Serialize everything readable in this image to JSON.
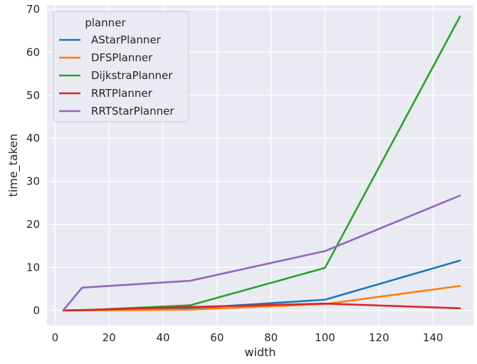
{
  "chart_data": {
    "type": "line",
    "xlabel": "width",
    "ylabel": "time_taken",
    "xlim": [
      -3,
      155
    ],
    "ylim": [
      -3.5,
      71
    ],
    "xticks": [
      0,
      20,
      40,
      60,
      80,
      100,
      120,
      140
    ],
    "yticks": [
      0,
      10,
      20,
      30,
      40,
      50,
      60,
      70
    ],
    "grid": true,
    "background": "#eaeaf2",
    "legend": {
      "title": "planner",
      "position": "top-left"
    },
    "series": [
      {
        "name": "AStarPlanner",
        "color": "#1f77b4",
        "x": [
          3,
          10,
          50,
          100,
          150
        ],
        "y": [
          0.0,
          0.05,
          0.5,
          2.5,
          11.6
        ]
      },
      {
        "name": "DFSPlanner",
        "color": "#ff7f0e",
        "x": [
          3,
          10,
          50,
          100,
          150
        ],
        "y": [
          0.0,
          0.02,
          0.2,
          1.5,
          5.7
        ]
      },
      {
        "name": "DijkstraPlanner",
        "color": "#2ca02c",
        "x": [
          3,
          10,
          50,
          100,
          150
        ],
        "y": [
          0.0,
          0.05,
          1.2,
          9.9,
          68.3
        ]
      },
      {
        "name": "RRTPlanner",
        "color": "#d62728",
        "x": [
          3,
          10,
          50,
          100,
          150
        ],
        "y": [
          0.0,
          0.1,
          0.8,
          1.6,
          0.5
        ]
      },
      {
        "name": "RRTStarPlanner",
        "color": "#9467bd",
        "x": [
          3,
          10,
          50,
          100,
          150
        ],
        "y": [
          0.0,
          5.3,
          6.9,
          13.8,
          26.7
        ]
      }
    ]
  }
}
